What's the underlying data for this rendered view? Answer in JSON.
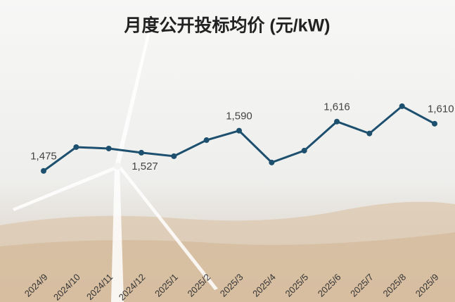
{
  "chart_data": {
    "type": "line",
    "title": "月度公开投标均价 (元/kW)",
    "categories": [
      "2024/9",
      "2024/10",
      "2024/11",
      "2024/12",
      "2025/1",
      "2025/2",
      "2025/3",
      "2025/4",
      "2025/5",
      "2025/6",
      "2025/7",
      "2025/8",
      "2025/9"
    ],
    "series": [
      {
        "name": "月度公开投标均价",
        "color": "#1d4f6e",
        "values": [
          1475,
          1543,
          1539,
          1527,
          1517,
          1563,
          1590,
          1499,
          1533,
          1616,
          1582,
          1660,
          1610
        ],
        "value_labels": [
          "1,475",
          null,
          null,
          "1,527",
          null,
          null,
          "1,590",
          null,
          null,
          "1,616",
          null,
          null,
          "1,610"
        ]
      }
    ],
    "ylim": [
      1400,
      1700
    ]
  }
}
